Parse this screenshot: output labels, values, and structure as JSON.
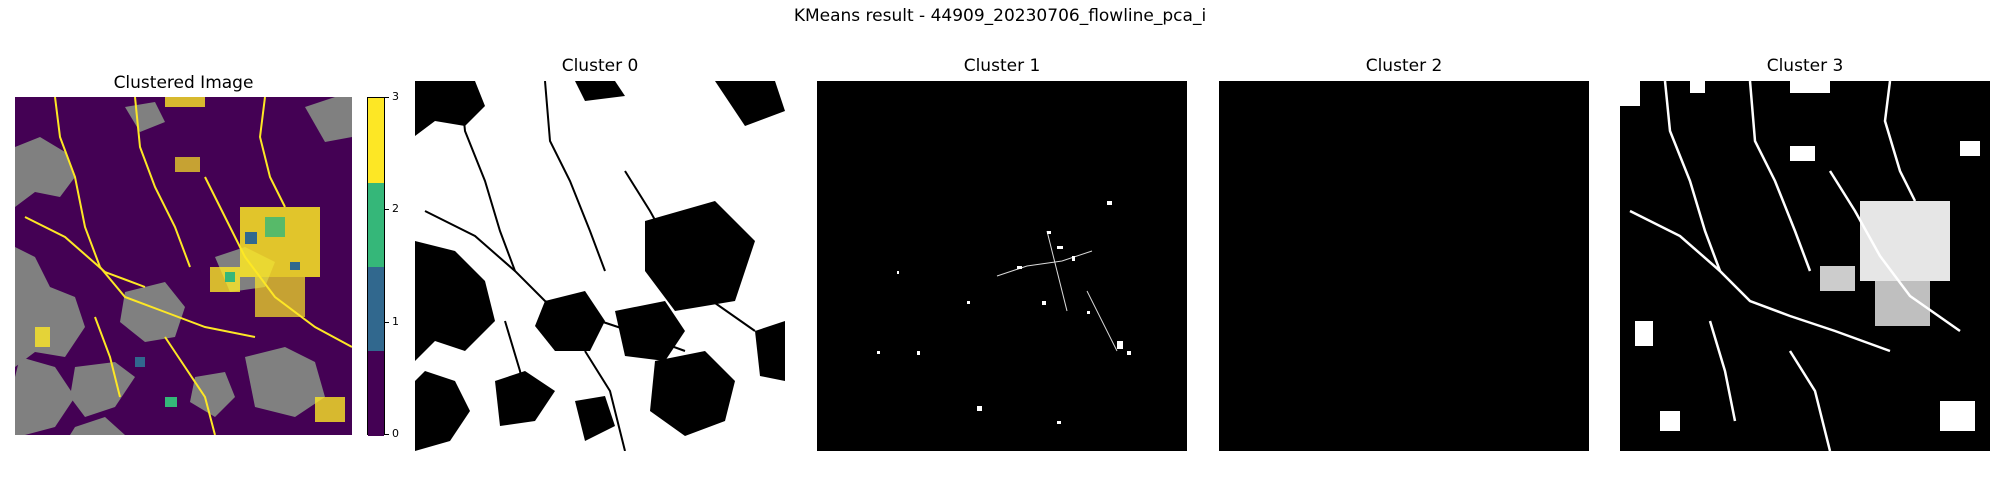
{
  "figure": {
    "suptitle": "KMeans result - 44909_20230706_flowline_pca_i"
  },
  "panels": [
    {
      "title": "Clustered Image",
      "kind": "label-map"
    },
    {
      "title": "Cluster 0",
      "kind": "binary-mask"
    },
    {
      "title": "Cluster 1",
      "kind": "binary-mask"
    },
    {
      "title": "Cluster 2",
      "kind": "binary-mask"
    },
    {
      "title": "Cluster 3",
      "kind": "binary-mask"
    }
  ],
  "colorbar": {
    "ticks": [
      "0",
      "1",
      "2",
      "3"
    ],
    "colors": [
      "#440154",
      "#31688e",
      "#35b779",
      "#fde725"
    ]
  },
  "colors": {
    "cluster0": "#440154",
    "cluster1": "#31688e",
    "cluster2": "#35b779",
    "cluster3": "#fde725",
    "nodata": "#808080",
    "mask_on": "#ffffff",
    "mask_off": "#000000"
  }
}
